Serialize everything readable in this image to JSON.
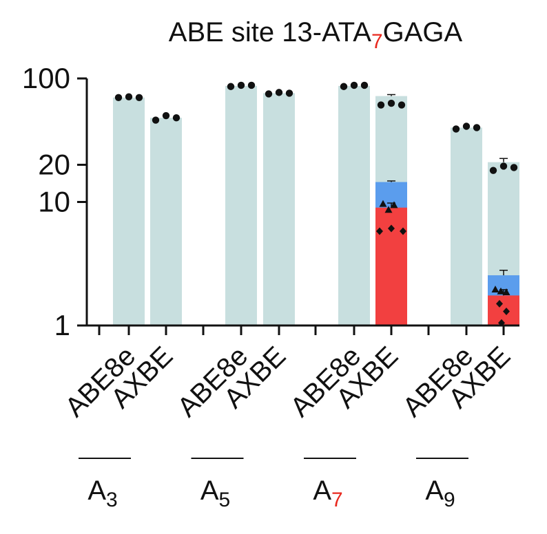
{
  "chart_data": {
    "type": "bar",
    "title": {
      "prefix": "ABE site 13-ATA",
      "subscript": "7",
      "suffix": "GAGA"
    },
    "yscale": "log",
    "ylim": [
      1,
      100
    ],
    "yticks": [
      "1",
      "10",
      "20",
      "100"
    ],
    "categories": [
      "ABE8e",
      "AXBE",
      "ABE8e",
      "AXBE",
      "ABE8e",
      "AXBE",
      "ABE8e",
      "AXBE"
    ],
    "groups": [
      {
        "base": "A",
        "sub": "3"
      },
      {
        "base": "A",
        "sub": "5"
      },
      {
        "base": "A",
        "sub": "7",
        "highlight": true
      },
      {
        "base": "A",
        "sub": "9"
      }
    ],
    "colors": {
      "total": "#c8dfdf",
      "blue": "#5b9ded",
      "red": "#f24040",
      "highlight_text": "#e8281e",
      "ink": "#111111"
    },
    "bars": [
      {
        "group": 0,
        "category": "ABE8e",
        "total": 70,
        "points": [
          70,
          71,
          70
        ]
      },
      {
        "group": 0,
        "category": "AXBE",
        "total": 48,
        "points": [
          46,
          50,
          48
        ]
      },
      {
        "group": 1,
        "category": "ABE8e",
        "total": 87,
        "points": [
          86,
          88,
          88
        ]
      },
      {
        "group": 1,
        "category": "AXBE",
        "total": 76,
        "points": [
          75,
          77,
          76
        ]
      },
      {
        "group": 2,
        "category": "ABE8e",
        "total": 87,
        "points": [
          86,
          88,
          88
        ]
      },
      {
        "group": 2,
        "category": "AXBE",
        "total": 72,
        "err": 74,
        "points": [
          61,
          63,
          61
        ],
        "blue": 14.5,
        "blue_err": 14.8,
        "red": 9.0,
        "red_err": 9.8,
        "triangles": [
          9.6,
          8.6,
          9.4
        ],
        "diamonds": [
          5.8,
          6.1,
          5.8
        ]
      },
      {
        "group": 3,
        "category": "ABE8e",
        "total": 40,
        "points": [
          39,
          41,
          40
        ]
      },
      {
        "group": 3,
        "category": "AXBE",
        "total": 21,
        "err": 22.5,
        "points": [
          18,
          19.5,
          19
        ],
        "blue": 2.55,
        "blue_err": 2.8,
        "red": 1.75,
        "red_err": 1.95,
        "triangles": [
          1.95,
          1.88,
          1.85
        ],
        "diamonds": [
          1.5,
          1.3,
          1.05
        ]
      }
    ]
  }
}
